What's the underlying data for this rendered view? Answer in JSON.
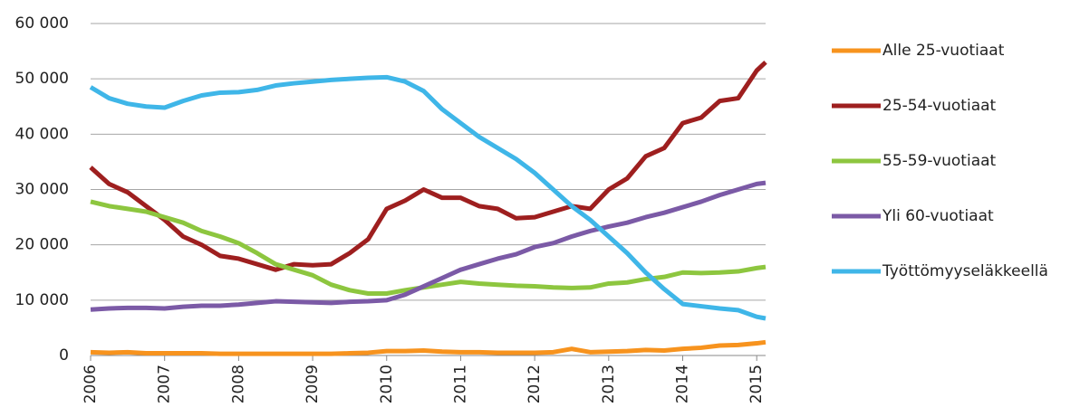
{
  "chart_data": {
    "type": "line",
    "x": [
      2006,
      2006.25,
      2006.5,
      2006.75,
      2007,
      2007.25,
      2007.5,
      2007.75,
      2008,
      2008.25,
      2008.5,
      2008.75,
      2009,
      2009.25,
      2009.5,
      2009.75,
      2010,
      2010.25,
      2010.5,
      2010.75,
      2011,
      2011.25,
      2011.5,
      2011.75,
      2012,
      2012.25,
      2012.5,
      2012.75,
      2013,
      2013.25,
      2013.5,
      2013.75,
      2014,
      2014.25,
      2014.5,
      2014.75,
      2015,
      2015.12
    ],
    "series": [
      {
        "name": "Alle 25-vuotiaat",
        "color": "#f7931e",
        "values": [
          600,
          500,
          600,
          400,
          400,
          400,
          400,
          300,
          300,
          300,
          300,
          300,
          300,
          300,
          400,
          500,
          800,
          800,
          900,
          700,
          600,
          600,
          500,
          500,
          500,
          600,
          1200,
          600,
          700,
          800,
          1000,
          900,
          1200,
          1400,
          1800,
          1900,
          2200,
          2400
        ]
      },
      {
        "name": "25-54-vuotiaat",
        "color": "#9e1f1f",
        "values": [
          34000,
          31000,
          29500,
          27000,
          24500,
          21500,
          20000,
          18000,
          17500,
          16500,
          15500,
          16500,
          16300,
          16500,
          18500,
          21000,
          26500,
          28000,
          30000,
          28500,
          28500,
          27000,
          26500,
          24800,
          25000,
          26000,
          27000,
          26500,
          30000,
          32000,
          36000,
          37500,
          42000,
          43000,
          46000,
          46500,
          51500,
          53000
        ]
      },
      {
        "name": "55-59-vuotiaat",
        "color": "#8dc63f",
        "values": [
          27800,
          27000,
          26500,
          26000,
          25000,
          24000,
          22500,
          21500,
          20300,
          18500,
          16500,
          15500,
          14500,
          12800,
          11800,
          11200,
          11200,
          11800,
          12300,
          12800,
          13300,
          13000,
          12800,
          12600,
          12500,
          12300,
          12200,
          12300,
          13000,
          13200,
          13800,
          14200,
          15000,
          14900,
          15000,
          15200,
          15800,
          16000
        ]
      },
      {
        "name": "Yli 60-vuotiaat",
        "color": "#7b5aa6",
        "values": [
          8300,
          8500,
          8600,
          8600,
          8500,
          8800,
          9000,
          9000,
          9200,
          9500,
          9800,
          9700,
          9600,
          9500,
          9700,
          9800,
          10000,
          11000,
          12500,
          14000,
          15500,
          16500,
          17500,
          18300,
          19600,
          20300,
          21500,
          22500,
          23300,
          24000,
          25000,
          25800,
          26800,
          27800,
          29000,
          30000,
          31000,
          31200
        ]
      },
      {
        "name": "Työttömyyseläkkeellä",
        "color": "#3fb6e8",
        "values": [
          48500,
          46500,
          45500,
          45000,
          44800,
          46000,
          47000,
          47500,
          47600,
          48000,
          48800,
          49200,
          49500,
          49800,
          50000,
          50200,
          50300,
          49500,
          47800,
          44500,
          42000,
          39500,
          37500,
          35500,
          33000,
          30000,
          27000,
          24500,
          21500,
          18500,
          15000,
          12000,
          9300,
          8900,
          8500,
          8200,
          7000,
          6700
        ]
      }
    ],
    "xlim": [
      2006,
      2015.12
    ],
    "xticks": [
      2006,
      2007,
      2008,
      2009,
      2010,
      2011,
      2012,
      2013,
      2014,
      2015
    ],
    "ylim": [
      0,
      60000
    ],
    "yticks": [
      0,
      {
        "value": 10000,
        "label": "10 000"
      },
      {
        "value": 20000,
        "label": "20 000"
      },
      {
        "value": 30000,
        "label": "30 000"
      },
      {
        "value": 40000,
        "label": "40 000"
      },
      {
        "value": 50000,
        "label": "50 000"
      },
      {
        "value": 60000,
        "label": "60 000"
      }
    ],
    "grid": true,
    "legend": "right"
  }
}
